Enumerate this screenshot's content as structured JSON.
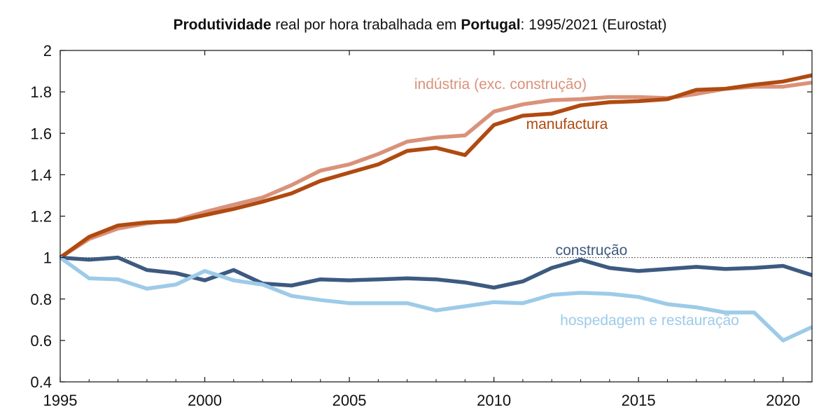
{
  "title": {
    "part1_bold": "Produtividade",
    "part2": " real por hora trabalhada em ",
    "part3_bold": "Portugal",
    "part4": ": 1995/2021 (Eurostat)"
  },
  "chart_data": {
    "type": "line",
    "title": "Produtividade real por hora trabalhada em Portugal: 1995/2021 (Eurostat)",
    "xlabel": "",
    "ylabel": "",
    "xlim": [
      1995,
      2021
    ],
    "ylim": [
      0.4,
      2
    ],
    "xticks": [
      "1995",
      "2000",
      "2005",
      "2010",
      "2015",
      "2020"
    ],
    "yticks": [
      "0.4",
      "0.6",
      "0.8",
      "1",
      "1.2",
      "1.4",
      "1.6",
      "1.8",
      "2"
    ],
    "reference_line": 1,
    "grid": false,
    "x": [
      1995,
      1996,
      1997,
      1998,
      1999,
      2000,
      2001,
      2002,
      2003,
      2004,
      2005,
      2006,
      2007,
      2008,
      2009,
      2010,
      2011,
      2012,
      2013,
      2014,
      2015,
      2016,
      2017,
      2018,
      2019,
      2020,
      2021
    ],
    "series": [
      {
        "name": "indústria (exc. construção)",
        "color": "#D9927A",
        "values": [
          1.0,
          1.09,
          1.14,
          1.165,
          1.18,
          1.22,
          1.255,
          1.29,
          1.35,
          1.42,
          1.45,
          1.5,
          1.56,
          1.58,
          1.59,
          1.705,
          1.74,
          1.76,
          1.765,
          1.775,
          1.775,
          1.77,
          1.79,
          1.815,
          1.825,
          1.825,
          1.845
        ]
      },
      {
        "name": "manufactura",
        "color": "#B04A10",
        "values": [
          1.0,
          1.1,
          1.155,
          1.17,
          1.175,
          1.205,
          1.235,
          1.27,
          1.31,
          1.37,
          1.41,
          1.45,
          1.515,
          1.53,
          1.495,
          1.64,
          1.685,
          1.695,
          1.735,
          1.75,
          1.755,
          1.765,
          1.81,
          1.815,
          1.835,
          1.85,
          1.88
        ]
      },
      {
        "name": "construção",
        "color": "#3D5A80",
        "values": [
          1.0,
          0.99,
          1.0,
          0.94,
          0.925,
          0.89,
          0.94,
          0.875,
          0.865,
          0.895,
          0.89,
          0.895,
          0.9,
          0.895,
          0.88,
          0.855,
          0.885,
          0.95,
          0.99,
          0.95,
          0.935,
          0.945,
          0.955,
          0.945,
          0.95,
          0.96,
          0.915
        ]
      },
      {
        "name": "hospedagem e restauração",
        "color": "#9DCBE8",
        "values": [
          1.0,
          0.9,
          0.895,
          0.85,
          0.87,
          0.935,
          0.89,
          0.87,
          0.815,
          0.795,
          0.78,
          0.78,
          0.78,
          0.745,
          0.765,
          0.785,
          0.78,
          0.82,
          0.83,
          0.825,
          0.81,
          0.775,
          0.76,
          0.735,
          0.735,
          0.6,
          0.665
        ]
      }
    ]
  }
}
